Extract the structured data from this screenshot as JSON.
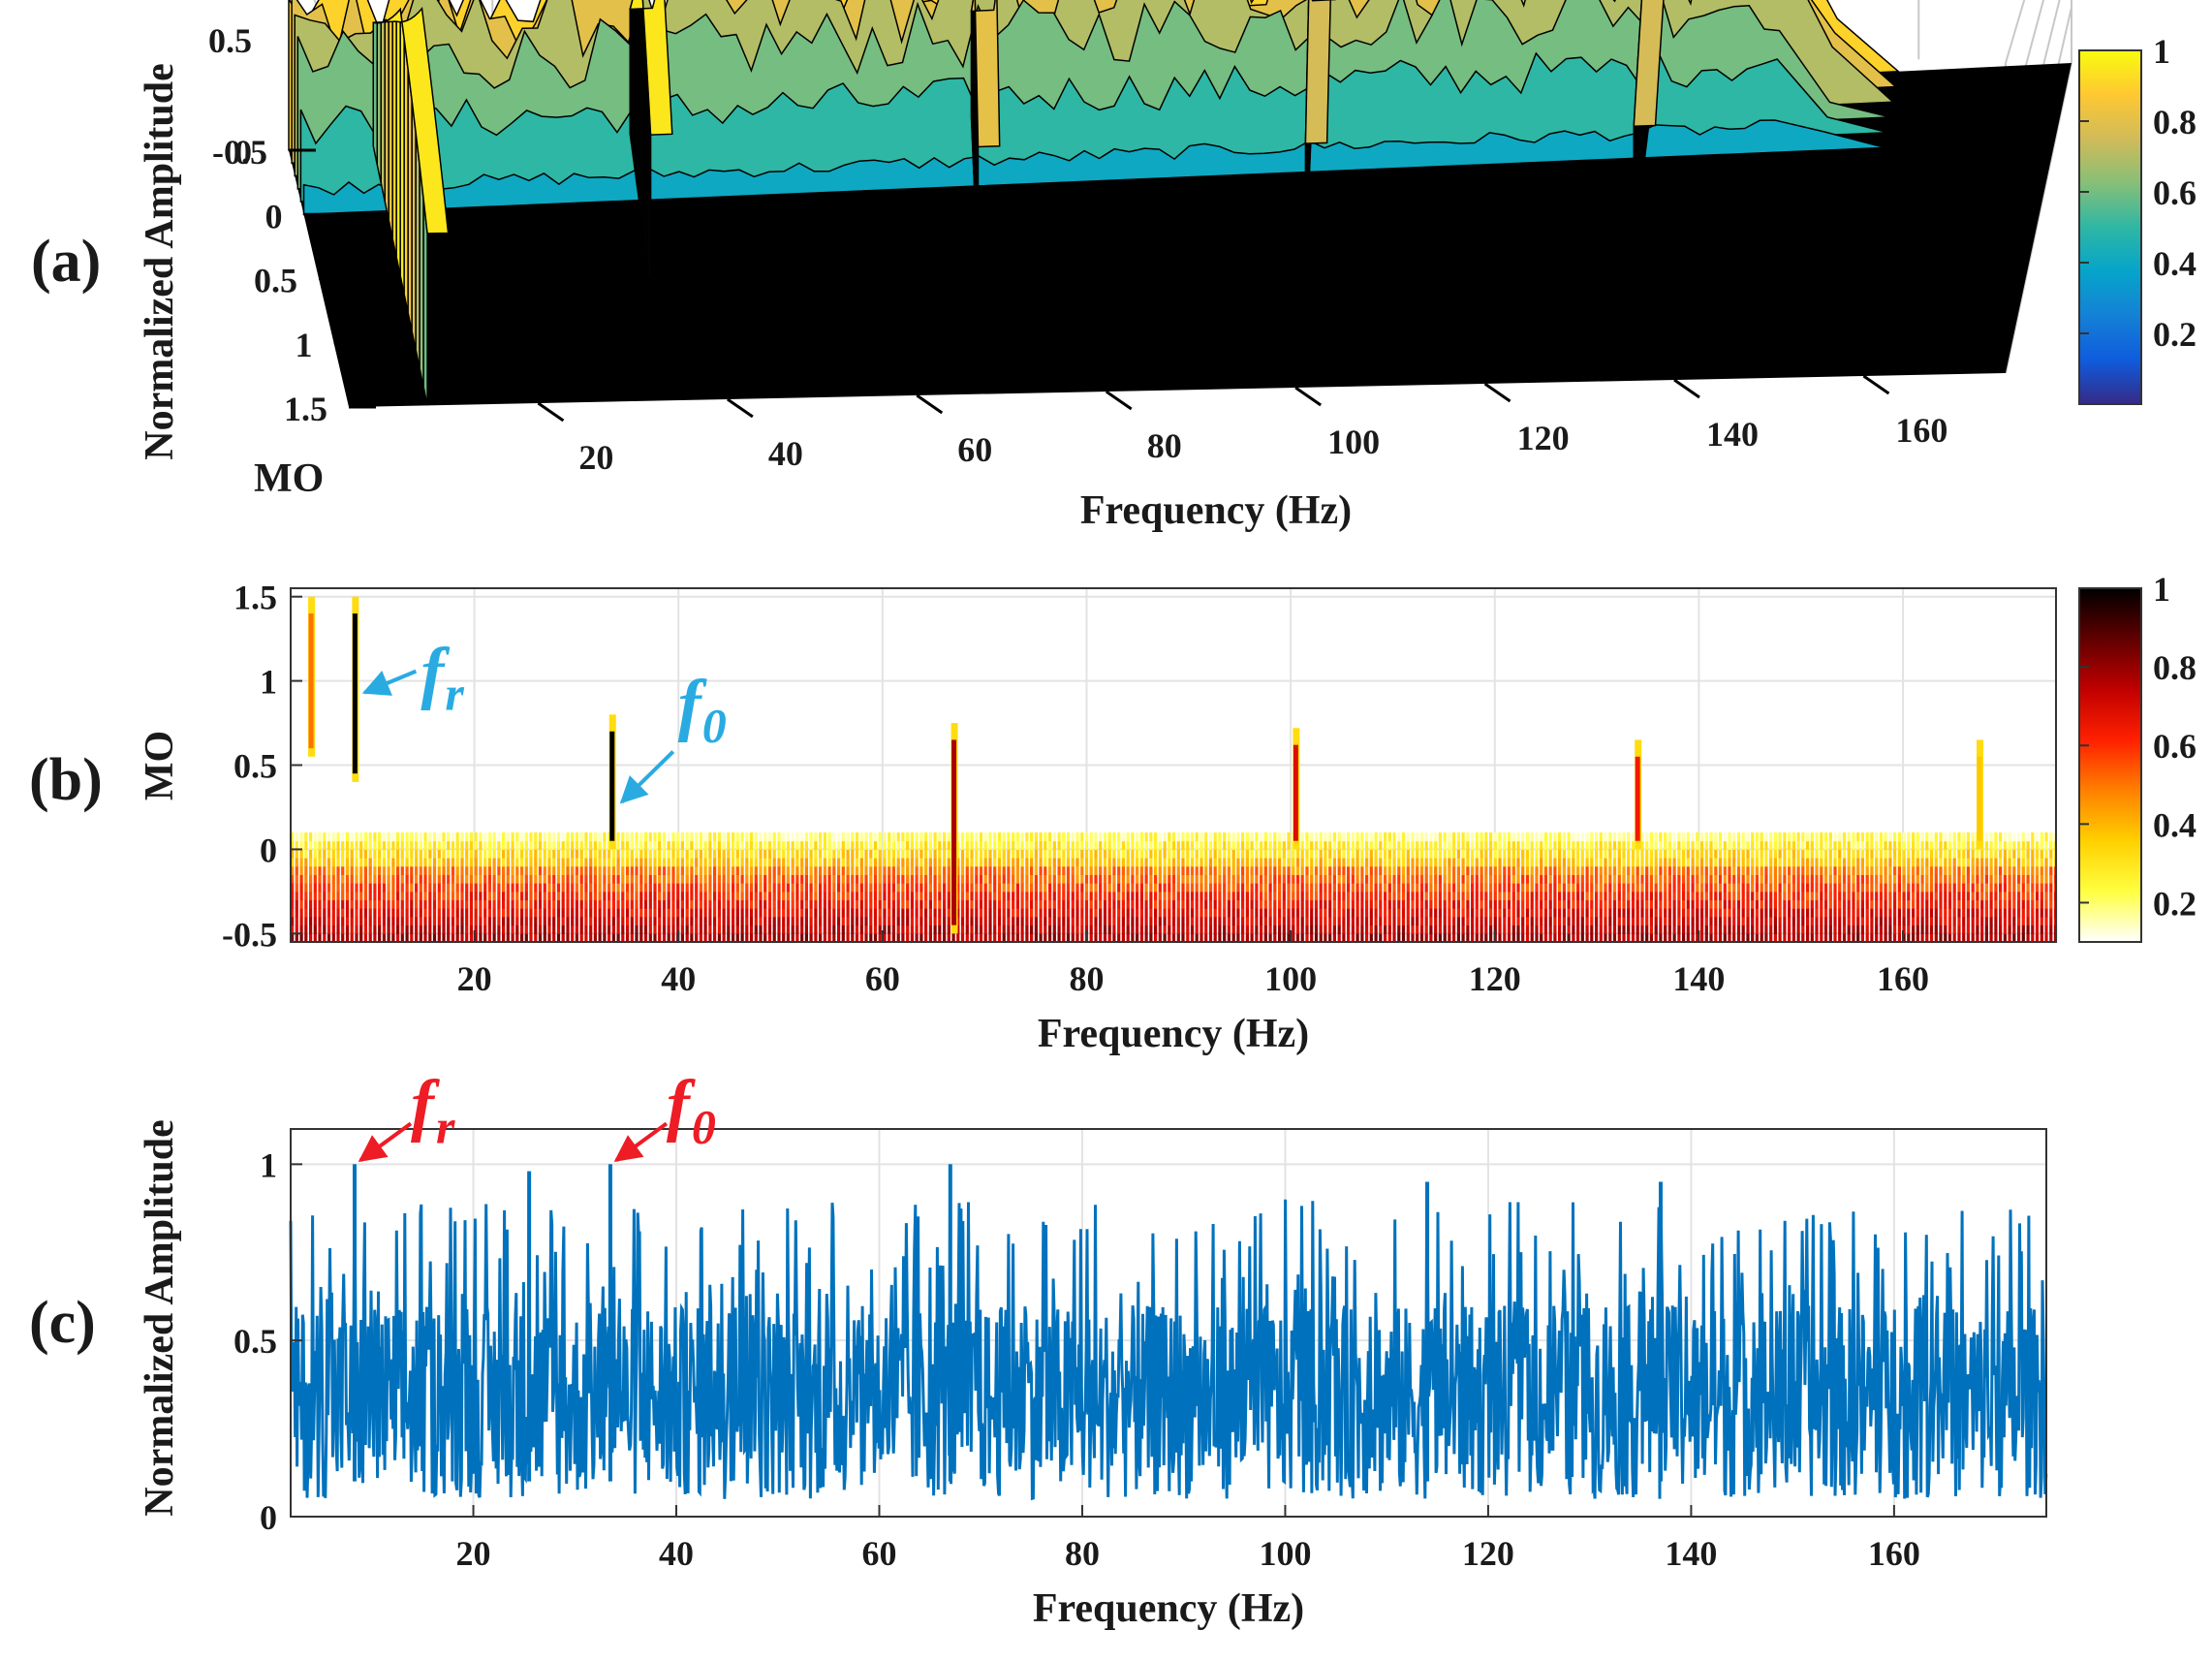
{
  "colors": {
    "parula": [
      "#352a87",
      "#0f5cdd",
      "#1481d6",
      "#06a4ca",
      "#2eb7a4",
      "#87bf77",
      "#d1bb59",
      "#fec832",
      "#f9fb0e"
    ],
    "hot": [
      "#ffffff",
      "#ffff40",
      "#ffd000",
      "#ff8000",
      "#ff2000",
      "#c00000",
      "#600000",
      "#000000"
    ],
    "spectrum_blue": "#0072bd",
    "annotation_blue": "#29abe2",
    "annotation_red": "#ee1c25"
  },
  "chart_data": [
    {
      "panel_label": "(a)",
      "type": "surface",
      "xlabel": "Frequency (Hz)",
      "ylabel": "MO",
      "zlabel": "Normalized Amplitude",
      "xticks": [
        "20",
        "40",
        "60",
        "80",
        "100",
        "120",
        "140",
        "160"
      ],
      "yticks": [
        "-0.5",
        "0",
        "0.5",
        "1",
        "1.5"
      ],
      "zticks": [
        "0",
        "0.5",
        "1"
      ],
      "xlim": [
        0,
        175
      ],
      "ylim": [
        -0.5,
        1.5
      ],
      "zlim": [
        0,
        1
      ],
      "colorbar": {
        "ticks": [
          "0.2",
          "0.4",
          "0.6",
          "0.8",
          "1"
        ],
        "range": [
          0,
          1
        ]
      },
      "ridges": [
        {
          "freq": 8.3,
          "mo_start": -0.5,
          "mo_end": 1.5,
          "amplitude": 1.0
        },
        {
          "freq": 33.5,
          "mo_start": -0.5,
          "mo_end": 0.65,
          "amplitude": 1.0
        },
        {
          "freq": 67.0,
          "mo_start": -0.5,
          "mo_end": 0.65,
          "amplitude": 0.85
        },
        {
          "freq": 100.5,
          "mo_start": -0.5,
          "mo_end": 0.65,
          "amplitude": 0.8
        },
        {
          "freq": 134.0,
          "mo_start": -0.5,
          "mo_end": 0.6,
          "amplitude": 0.8
        }
      ]
    },
    {
      "panel_label": "(b)",
      "type": "heatmap",
      "xlabel": "Frequency (Hz)",
      "ylabel": "MO",
      "xticks": [
        "20",
        "40",
        "60",
        "80",
        "100",
        "120",
        "140",
        "160"
      ],
      "yticks": [
        "-0.5",
        "0",
        "0.5",
        "1",
        "1.5"
      ],
      "xlim": [
        2,
        175
      ],
      "ylim": [
        -0.55,
        1.55
      ],
      "grid": true,
      "colorbar": {
        "ticks": [
          "0.2",
          "0.4",
          "0.6",
          "0.8",
          "1"
        ],
        "range": [
          0.1,
          1
        ]
      },
      "lines": [
        {
          "freq": 4.0,
          "mo_top": 1.5,
          "mo_bottom": 0.55,
          "intensity": 0.45
        },
        {
          "freq": 8.3,
          "mo_top": 1.5,
          "mo_bottom": 0.4,
          "intensity": 1.0
        },
        {
          "freq": 33.5,
          "mo_top": 0.8,
          "mo_bottom": 0.0,
          "intensity": 1.0
        },
        {
          "freq": 67.0,
          "mo_top": 0.75,
          "mo_bottom": -0.5,
          "intensity": 0.75
        },
        {
          "freq": 100.5,
          "mo_top": 0.72,
          "mo_bottom": 0.0,
          "intensity": 0.65
        },
        {
          "freq": 134.0,
          "mo_top": 0.65,
          "mo_bottom": 0.0,
          "intensity": 0.6
        },
        {
          "freq": 167.5,
          "mo_top": 0.65,
          "mo_bottom": 0.0,
          "intensity": 0.3
        }
      ],
      "annotations": [
        {
          "label": "f",
          "subscript": "r",
          "freq": 8.3,
          "mo": 1.0
        },
        {
          "label": "f",
          "subscript": "0",
          "freq": 33.5,
          "mo": 0.35
        }
      ]
    },
    {
      "panel_label": "(c)",
      "type": "line",
      "xlabel": "Frequency (Hz)",
      "ylabel": "Normalized Amplitude",
      "xticks": [
        "20",
        "40",
        "60",
        "80",
        "100",
        "120",
        "140",
        "160"
      ],
      "yticks": [
        "0",
        "0.5",
        "1"
      ],
      "xlim": [
        2,
        175
      ],
      "ylim": [
        0,
        1.1
      ],
      "grid": true,
      "series": [
        {
          "peaks": [
            {
              "freq": 8.3,
              "value": 1.0
            },
            {
              "freq": 25.5,
              "value": 0.98
            },
            {
              "freq": 33.5,
              "value": 1.0
            },
            {
              "freq": 67.0,
              "value": 1.0
            },
            {
              "freq": 114.0,
              "value": 0.95
            },
            {
              "freq": 137.0,
              "value": 0.95
            }
          ],
          "baseline_range": [
            0.05,
            0.6
          ],
          "spike_range": [
            0.55,
            0.9
          ]
        }
      ],
      "annotations": [
        {
          "label": "f",
          "subscript": "r",
          "freq": 8.3,
          "value": 1.0
        },
        {
          "label": "f",
          "subscript": "0",
          "freq": 33.5,
          "value": 1.0
        }
      ]
    }
  ]
}
